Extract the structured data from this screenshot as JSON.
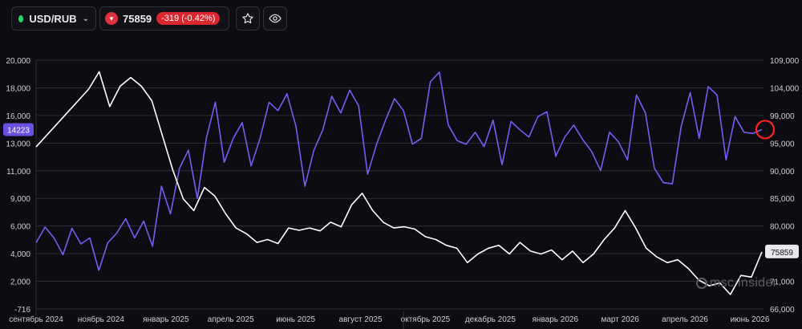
{
  "header": {
    "symbol": "USD/RUB",
    "symbol_chevron": "chevron-down-icon",
    "price": "75859",
    "change": "-319 (-0.42%)",
    "colors": {
      "status_dot": "#2bd46a",
      "down": "#e0303a"
    }
  },
  "watermark": "msc insider",
  "chart_data": {
    "type": "line",
    "x_labels": [
      "сентябрь 2024",
      "ноябрь 2024",
      "январь 2025",
      "апрель 2025",
      "июнь 2025",
      "август 2025",
      "октябрь 2025",
      "декабрь 2025",
      "январь 2026",
      "март 2026",
      "апрель 2026",
      "июнь 2026"
    ],
    "left_axis": {
      "ticks": [
        "20,000",
        "18,000",
        "16,000",
        "13,000",
        "11,000",
        "9,000",
        "6,000",
        "4,000",
        "2,000",
        "-716"
      ],
      "range": [
        -716,
        20000
      ]
    },
    "right_axis": {
      "ticks": [
        "109,000",
        "104,000",
        "99,000",
        "95,000",
        "90,000",
        "85,000",
        "80,000",
        "76,000",
        "71,000",
        "66,000"
      ],
      "range": [
        66000,
        109000
      ]
    },
    "series": [
      {
        "axis": "left",
        "color": "#7b5cf2",
        "last_label": "14223",
        "values": [
          4800,
          6100,
          5200,
          3800,
          6000,
          4700,
          5200,
          2500,
          4800,
          5600,
          6800,
          5200,
          6600,
          4500,
          9500,
          7200,
          11000,
          12500,
          8500,
          13500,
          16500,
          11500,
          13500,
          14800,
          11200,
          13500,
          16500,
          15800,
          17200,
          14500,
          9500,
          12500,
          14200,
          17000,
          15600,
          17500,
          16200,
          10500,
          13000,
          15000,
          16800,
          15800,
          13000,
          13500,
          18200,
          19000,
          14600,
          13300,
          13000,
          14000,
          12800,
          15000,
          11300,
          14900,
          14200,
          13600,
          15300,
          15700,
          12000,
          13600,
          14600,
          13400,
          12400,
          10800,
          14000,
          13200,
          11700,
          17100,
          15600,
          11000,
          9800,
          9700,
          14500,
          17300,
          13500,
          17800,
          17100,
          11700,
          15300,
          14000,
          13900,
          14223
        ]
      },
      {
        "axis": "right",
        "color": "#ffffff",
        "last_value": "75859",
        "values": [
          94000,
          96000,
          98000,
          100000,
          102000,
          104000,
          107000,
          101000,
          104500,
          106000,
          104500,
          102000,
          96000,
          90000,
          85000,
          83000,
          87000,
          85500,
          82500,
          80000,
          79000,
          77500,
          78000,
          77300,
          80000,
          79600,
          80000,
          79500,
          81000,
          80200,
          84000,
          86000,
          83000,
          81000,
          80000,
          80200,
          79800,
          78500,
          78000,
          77000,
          76500,
          74000,
          75500,
          76500,
          77000,
          75500,
          77500,
          76000,
          75500,
          76200,
          74500,
          76000,
          74000,
          75500,
          78000,
          80000,
          83000,
          80000,
          76500,
          75000,
          74000,
          74500,
          73000,
          71000,
          70000,
          70500,
          68500,
          71800,
          71500,
          75859
        ]
      }
    ],
    "marker": "red-circle",
    "grid": true
  }
}
